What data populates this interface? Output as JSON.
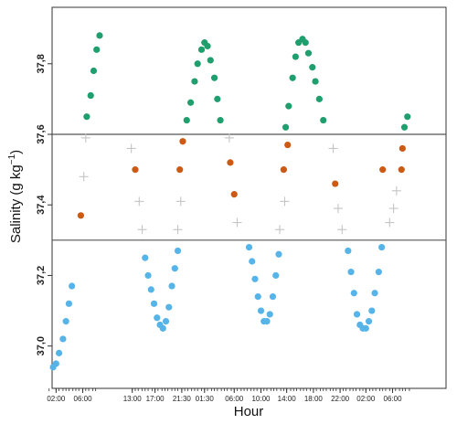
{
  "chart_data": {
    "type": "scatter",
    "title": "",
    "xlabel": "Hour",
    "ylabel": "Salinity (g kg",
    "ylabel_sup": "−1",
    "ylabel_close": ")",
    "ylim": [
      36.88,
      37.96
    ],
    "xlim": [
      -0.4,
      39.4
    ],
    "yticks": [
      37.0,
      37.2,
      37.4,
      37.6,
      37.8
    ],
    "ytick_labels": [
      "37,0",
      "37,2",
      "37,4",
      "37,6",
      "37,8"
    ],
    "hlines": [
      37.6,
      37.3
    ],
    "xticks": [
      {
        "x": 0,
        "label": "02:00"
      },
      {
        "x": 2.7,
        "label": "06:00"
      },
      {
        "x": 7.7,
        "label": "13:00"
      },
      {
        "x": 10.0,
        "label": "17:00"
      },
      {
        "x": 12.7,
        "label": "21:30"
      },
      {
        "x": 15.0,
        "label": "01:30"
      },
      {
        "x": 18.0,
        "label": "06:00"
      },
      {
        "x": 20.7,
        "label": "10:00"
      },
      {
        "x": 23.3,
        "label": "14:00"
      },
      {
        "x": 26.0,
        "label": "18:00"
      },
      {
        "x": 28.7,
        "label": "22:00"
      },
      {
        "x": 31.3,
        "label": "02:00"
      },
      {
        "x": 34.0,
        "label": "06:00"
      }
    ],
    "minor_xticks": [
      -0.7,
      0,
      0.3,
      0.7,
      1,
      1.3,
      1.7,
      2,
      2.3,
      2.7,
      3,
      3.3,
      3.7,
      4,
      7.7,
      8,
      8.3,
      8.7,
      9,
      9.3,
      9.7,
      10,
      10.3,
      10.7,
      11,
      11.3,
      11.7,
      12,
      12.3,
      12.7,
      13,
      13.3,
      13.7,
      14,
      14.3,
      14.7,
      15,
      15.3,
      15.7,
      16,
      16.3,
      16.7,
      17,
      17.3,
      17.7,
      18,
      18.3,
      18.7,
      19,
      19.3,
      19.7,
      20,
      20.3,
      20.7,
      21,
      21.3,
      21.7,
      22,
      22.3,
      22.7,
      23,
      23.3,
      23.7,
      24,
      24.3,
      24.7,
      25,
      25.3,
      25.7,
      26,
      26.3,
      26.7,
      27,
      27.3,
      27.7,
      28,
      28.3,
      28.7,
      29,
      29.3,
      29.7,
      30,
      30.3,
      30.7,
      31,
      31.3,
      31.7,
      32,
      32.3,
      32.7,
      33,
      33.3,
      33.7,
      34,
      34.3,
      34.7,
      35,
      35.3,
      35.7
    ],
    "series": [
      {
        "marker": "circle",
        "color": "#1f9e6e",
        "points": [
          [
            3.1,
            37.65
          ],
          [
            3.5,
            37.71
          ],
          [
            3.8,
            37.78
          ],
          [
            4.1,
            37.84
          ],
          [
            4.4,
            37.88
          ],
          [
            13.2,
            37.64
          ],
          [
            13.6,
            37.69
          ],
          [
            14.0,
            37.75
          ],
          [
            14.3,
            37.8
          ],
          [
            14.7,
            37.84
          ],
          [
            15.0,
            37.86
          ],
          [
            15.3,
            37.85
          ],
          [
            15.6,
            37.81
          ],
          [
            16.0,
            37.76
          ],
          [
            16.3,
            37.7
          ],
          [
            16.6,
            37.64
          ],
          [
            23.2,
            37.62
          ],
          [
            23.5,
            37.68
          ],
          [
            23.9,
            37.76
          ],
          [
            24.2,
            37.82
          ],
          [
            24.5,
            37.86
          ],
          [
            24.9,
            37.87
          ],
          [
            25.2,
            37.86
          ],
          [
            25.5,
            37.83
          ],
          [
            25.9,
            37.79
          ],
          [
            26.2,
            37.75
          ],
          [
            26.6,
            37.7
          ],
          [
            27.0,
            37.64
          ],
          [
            35.2,
            37.62
          ],
          [
            35.5,
            37.65
          ]
        ]
      },
      {
        "marker": "circle",
        "color": "#cc5a14",
        "points": [
          [
            2.5,
            37.37
          ],
          [
            8.0,
            37.5
          ],
          [
            12.5,
            37.5
          ],
          [
            12.8,
            37.58
          ],
          [
            17.6,
            37.52
          ],
          [
            18.0,
            37.43
          ],
          [
            23.0,
            37.5
          ],
          [
            23.4,
            37.57
          ],
          [
            28.2,
            37.46
          ],
          [
            33.0,
            37.5
          ],
          [
            34.9,
            37.5
          ],
          [
            35.0,
            37.56
          ]
        ]
      },
      {
        "marker": "cross",
        "color": "#c4c4c4",
        "points": [
          [
            2.8,
            37.48
          ],
          [
            3.0,
            37.59
          ],
          [
            7.6,
            37.56
          ],
          [
            8.4,
            37.41
          ],
          [
            8.7,
            37.33
          ],
          [
            12.3,
            37.33
          ],
          [
            12.6,
            37.41
          ],
          [
            17.5,
            37.59
          ],
          [
            18.3,
            37.35
          ],
          [
            22.6,
            37.33
          ],
          [
            23.1,
            37.41
          ],
          [
            28.0,
            37.56
          ],
          [
            28.5,
            37.39
          ],
          [
            28.9,
            37.33
          ],
          [
            33.7,
            37.35
          ],
          [
            34.1,
            37.39
          ],
          [
            34.4,
            37.44
          ]
        ]
      },
      {
        "marker": "circle",
        "color": "#56b4e9",
        "points": [
          [
            -0.3,
            36.94
          ],
          [
            0.0,
            36.95
          ],
          [
            0.3,
            36.98
          ],
          [
            0.7,
            37.02
          ],
          [
            1.0,
            37.07
          ],
          [
            1.3,
            37.12
          ],
          [
            1.6,
            37.17
          ],
          [
            9.0,
            37.25
          ],
          [
            9.3,
            37.2
          ],
          [
            9.6,
            37.16
          ],
          [
            9.9,
            37.12
          ],
          [
            10.2,
            37.08
          ],
          [
            10.5,
            37.06
          ],
          [
            10.8,
            37.05
          ],
          [
            11.1,
            37.07
          ],
          [
            11.4,
            37.11
          ],
          [
            11.7,
            37.17
          ],
          [
            12.0,
            37.22
          ],
          [
            12.3,
            37.27
          ],
          [
            19.5,
            37.28
          ],
          [
            19.8,
            37.24
          ],
          [
            20.1,
            37.19
          ],
          [
            20.4,
            37.14
          ],
          [
            20.7,
            37.1
          ],
          [
            21.0,
            37.07
          ],
          [
            21.3,
            37.07
          ],
          [
            21.6,
            37.09
          ],
          [
            21.9,
            37.14
          ],
          [
            22.2,
            37.2
          ],
          [
            22.5,
            37.26
          ],
          [
            29.5,
            37.27
          ],
          [
            29.8,
            37.21
          ],
          [
            30.1,
            37.15
          ],
          [
            30.4,
            37.09
          ],
          [
            30.7,
            37.06
          ],
          [
            31.0,
            37.05
          ],
          [
            31.3,
            37.05
          ],
          [
            31.6,
            37.07
          ],
          [
            31.9,
            37.1
          ],
          [
            32.2,
            37.15
          ],
          [
            32.6,
            37.21
          ],
          [
            32.9,
            37.28
          ]
        ]
      }
    ]
  }
}
